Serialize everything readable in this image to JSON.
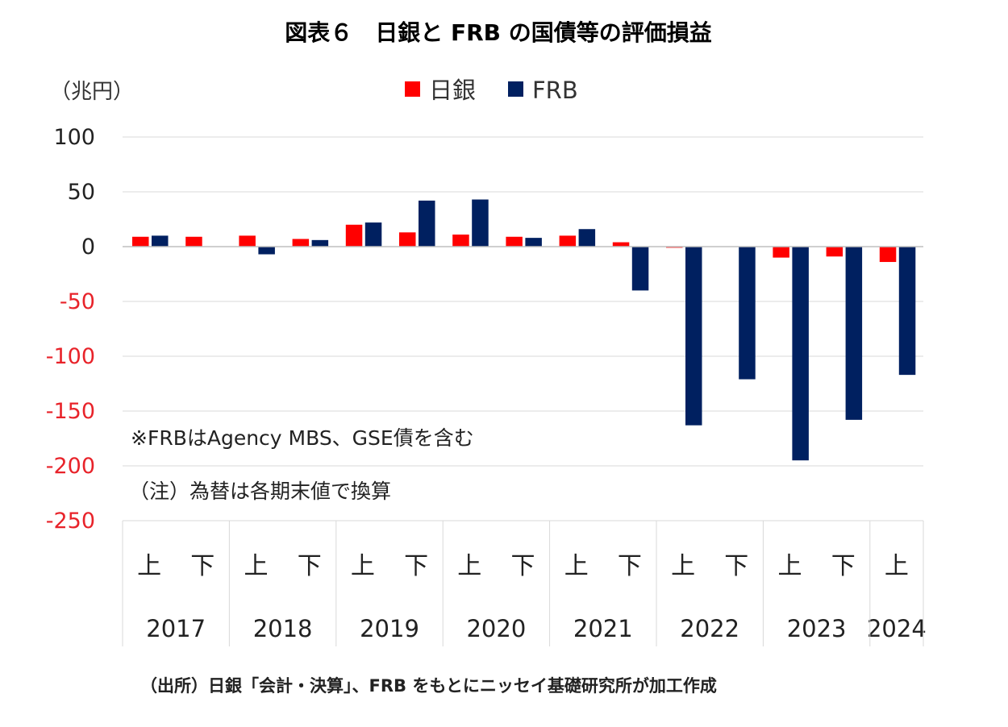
{
  "chart_data": {
    "type": "bar",
    "title": "図表６　日銀と FRB の国債等の評価損益",
    "ylabel": "（兆円）",
    "ylim": [
      -250,
      100
    ],
    "yticks": [
      "100",
      "50",
      "0",
      "-50",
      "-100",
      "-150",
      "-200",
      "-250"
    ],
    "categories": [
      "2017上",
      "2017下",
      "2018上",
      "2018下",
      "2019上",
      "2019下",
      "2020上",
      "2020下",
      "2021上",
      "2021下",
      "2022上",
      "2022下",
      "2023上",
      "2023下",
      "2024上"
    ],
    "half_labels": [
      "上",
      "下",
      "上",
      "下",
      "上",
      "下",
      "上",
      "下",
      "上",
      "下",
      "上",
      "下",
      "上",
      "下",
      "上"
    ],
    "years": [
      {
        "label": "2017",
        "span": 2
      },
      {
        "label": "2018",
        "span": 2
      },
      {
        "label": "2019",
        "span": 2
      },
      {
        "label": "2020",
        "span": 2
      },
      {
        "label": "2021",
        "span": 2
      },
      {
        "label": "2022",
        "span": 2
      },
      {
        "label": "2023",
        "span": 2
      },
      {
        "label": "2024",
        "span": 1
      }
    ],
    "series": [
      {
        "name": "日銀",
        "color": "#ff0000",
        "values": [
          9,
          9,
          10,
          7,
          20,
          13,
          11,
          9,
          10,
          4,
          -1,
          0,
          -10,
          -9,
          -14
        ]
      },
      {
        "name": "FRB",
        "color": "#002060",
        "values": [
          10,
          0,
          -7,
          6,
          22,
          42,
          43,
          8,
          16,
          -40,
          -163,
          -121,
          -195,
          -158,
          -117
        ]
      }
    ],
    "notes": [
      "※FRBはAgency MBS、GSE債を含む",
      "（注）為替は各期末値で換算"
    ],
    "legend_position": "top",
    "grid": true,
    "negative_tick_color": "#e8232a",
    "positive_tick_color": "#222222"
  },
  "source": "（出所）日銀「会計・決算」、FRB をもとにニッセイ基礎研究所が加工作成"
}
